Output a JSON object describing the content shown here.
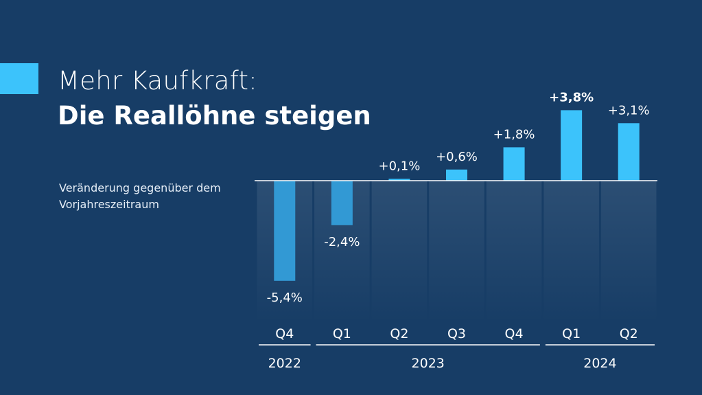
{
  "header": {
    "title_line1": "Mehr Kaufkraft:",
    "title_line2": "Die Reallöhne steigen",
    "subtitle": "Veränderung gegenüber dem Vorjahreszeitraum"
  },
  "colors": {
    "background": "#173d66",
    "accent": "#3cc3fb",
    "negative_bar": "#3299d4",
    "positive_bar": "#3cc3fb"
  },
  "chart_data": {
    "type": "bar",
    "categories": [
      "Q4",
      "Q1",
      "Q2",
      "Q3",
      "Q4",
      "Q1",
      "Q2"
    ],
    "values": [
      -5.4,
      -2.4,
      0.1,
      0.6,
      1.8,
      3.8,
      3.1
    ],
    "value_labels": [
      "-5,4%",
      "-2,4%",
      "+0,1%",
      "+0,6%",
      "+1,8%",
      "+3,8%",
      "+3,1%"
    ],
    "highlight_index": 5,
    "years": [
      {
        "label": "2022",
        "start": 0,
        "end": 0
      },
      {
        "label": "2023",
        "start": 1,
        "end": 4
      },
      {
        "label": "2024",
        "start": 5,
        "end": 6
      }
    ],
    "title": "Mehr Kaufkraft: Die Reallöhne steigen",
    "xlabel": "",
    "ylabel": "",
    "ylim": [
      -6,
      4
    ],
    "grid": false
  }
}
